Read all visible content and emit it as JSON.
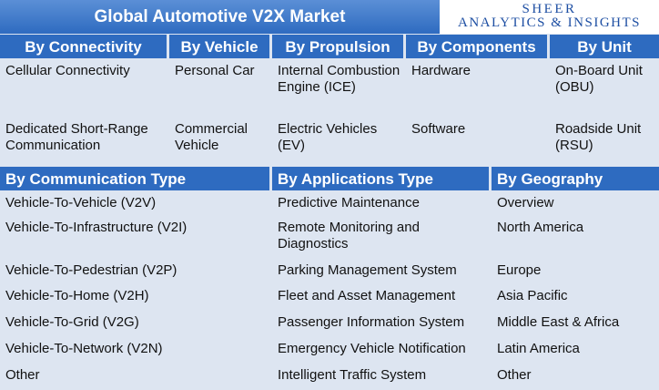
{
  "title": "Global Automotive V2X Market",
  "logo": {
    "line1": "SHEER",
    "line2": "ANALYTICS & INSIGHTS"
  },
  "top_table": {
    "headers": [
      "By Connectivity",
      "By Vehicle",
      "By Propulsion",
      "By Components",
      "By Unit"
    ],
    "rows": [
      [
        "Cellular Connectivity",
        "Personal Car",
        "Internal Combustion Engine (ICE)",
        "Hardware",
        "On-Board Unit (OBU)"
      ],
      [
        "Dedicated Short-Range Communication",
        "Commercial Vehicle",
        "Electric Vehicles (EV)",
        "Software",
        "Roadside Unit (RSU)"
      ]
    ]
  },
  "bottom_table": {
    "headers": [
      "By Communication Type",
      "By Applications Type",
      "By Geography"
    ],
    "rows": [
      [
        "Vehicle-To-Vehicle (V2V)",
        "Predictive Maintenance",
        "Overview"
      ],
      [
        "Vehicle-To-Infrastructure (V2I)",
        "Remote Monitoring and Diagnostics",
        "North America"
      ],
      [
        "Vehicle-To-Pedestrian (V2P)",
        "Parking Management System",
        "Europe"
      ],
      [
        "Vehicle-To-Home (V2H)",
        "Fleet and Asset Management",
        "Asia Pacific"
      ],
      [
        "Vehicle-To-Grid (V2G)",
        "Passenger Information System",
        "Middle East & Africa"
      ],
      [
        "Vehicle-To-Network (V2N)",
        "Emergency Vehicle Notification",
        "Latin America"
      ],
      [
        "Other",
        "Intelligent Traffic System",
        "Other"
      ]
    ]
  },
  "colors": {
    "header_blue": "#2e6bc0",
    "cell_bg": "#dde5f1",
    "logo_text": "#1e4fa3"
  }
}
